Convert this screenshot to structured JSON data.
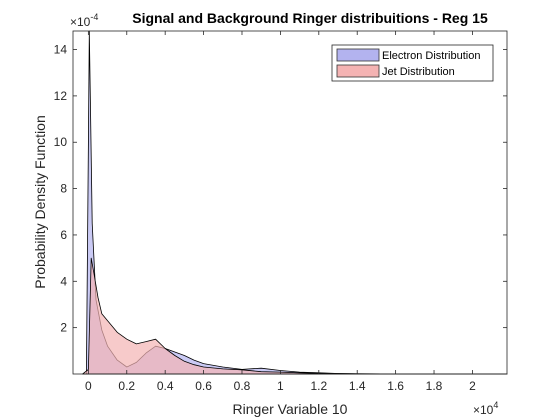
{
  "chart_data": {
    "type": "area",
    "title": "Signal and Background Ringer distribuitions - Reg 15",
    "xlabel": "Ringer Variable 10",
    "ylabel": "Probability Density Function",
    "x_exponent_label": "×10",
    "x_exponent": "4",
    "y_exponent_label": "×10",
    "y_exponent": "-4",
    "xlim": [
      -800,
      21800
    ],
    "ylim": [
      0,
      14.8
    ],
    "x_ticks": [
      0,
      2000,
      4000,
      6000,
      8000,
      10000,
      12000,
      14000,
      16000,
      18000,
      20000
    ],
    "x_tick_labels": [
      "0",
      "0.2",
      "0.4",
      "0.6",
      "0.8",
      "1",
      "1.2",
      "1.4",
      "1.6",
      "1.8",
      "2"
    ],
    "y_ticks": [
      2,
      4,
      6,
      8,
      10,
      12,
      14
    ],
    "y_tick_labels": [
      "2",
      "4",
      "6",
      "8",
      "10",
      "12",
      "14"
    ],
    "y_units_scale": "1e-4",
    "grid": false,
    "legend_position": "top-right",
    "series": [
      {
        "name": "Electron Distribution",
        "color": "#b3b3ef",
        "x": [
          -300,
          -100,
          0,
          50,
          100,
          200,
          400,
          700,
          1000,
          1500,
          2000,
          2500,
          3000,
          3500,
          4000,
          4500,
          5000,
          5500,
          6000,
          7000,
          8000,
          9000,
          10000,
          11000,
          12000,
          13000,
          14000,
          16000,
          18000,
          20000,
          21800
        ],
        "values": [
          0,
          0,
          10,
          14.8,
          12,
          6.5,
          3.2,
          1.9,
          1.2,
          0.6,
          0.3,
          0.5,
          0.9,
          1.2,
          1.1,
          0.95,
          0.8,
          0.6,
          0.45,
          0.3,
          0.2,
          0.25,
          0.15,
          0.08,
          0.05,
          0.02,
          0.01,
          0,
          0,
          0,
          0
        ]
      },
      {
        "name": "Jet Distribution",
        "color": "#f4b3b3",
        "x": [
          -300,
          0,
          150,
          300,
          500,
          700,
          1000,
          1500,
          2000,
          2500,
          3000,
          3500,
          4000,
          4500,
          5000,
          5500,
          6000,
          7000,
          8000,
          9000,
          10000,
          11000,
          12000,
          13000,
          14000,
          16000,
          18000,
          20000,
          21800
        ],
        "values": [
          0,
          0.2,
          5.0,
          4.3,
          3.3,
          2.6,
          2.3,
          1.8,
          1.5,
          1.3,
          1.4,
          1.5,
          1.1,
          0.8,
          0.55,
          0.4,
          0.3,
          0.22,
          0.18,
          0.1,
          0.08,
          0.05,
          0.03,
          0.02,
          0.01,
          0,
          0,
          0,
          0
        ]
      }
    ]
  }
}
